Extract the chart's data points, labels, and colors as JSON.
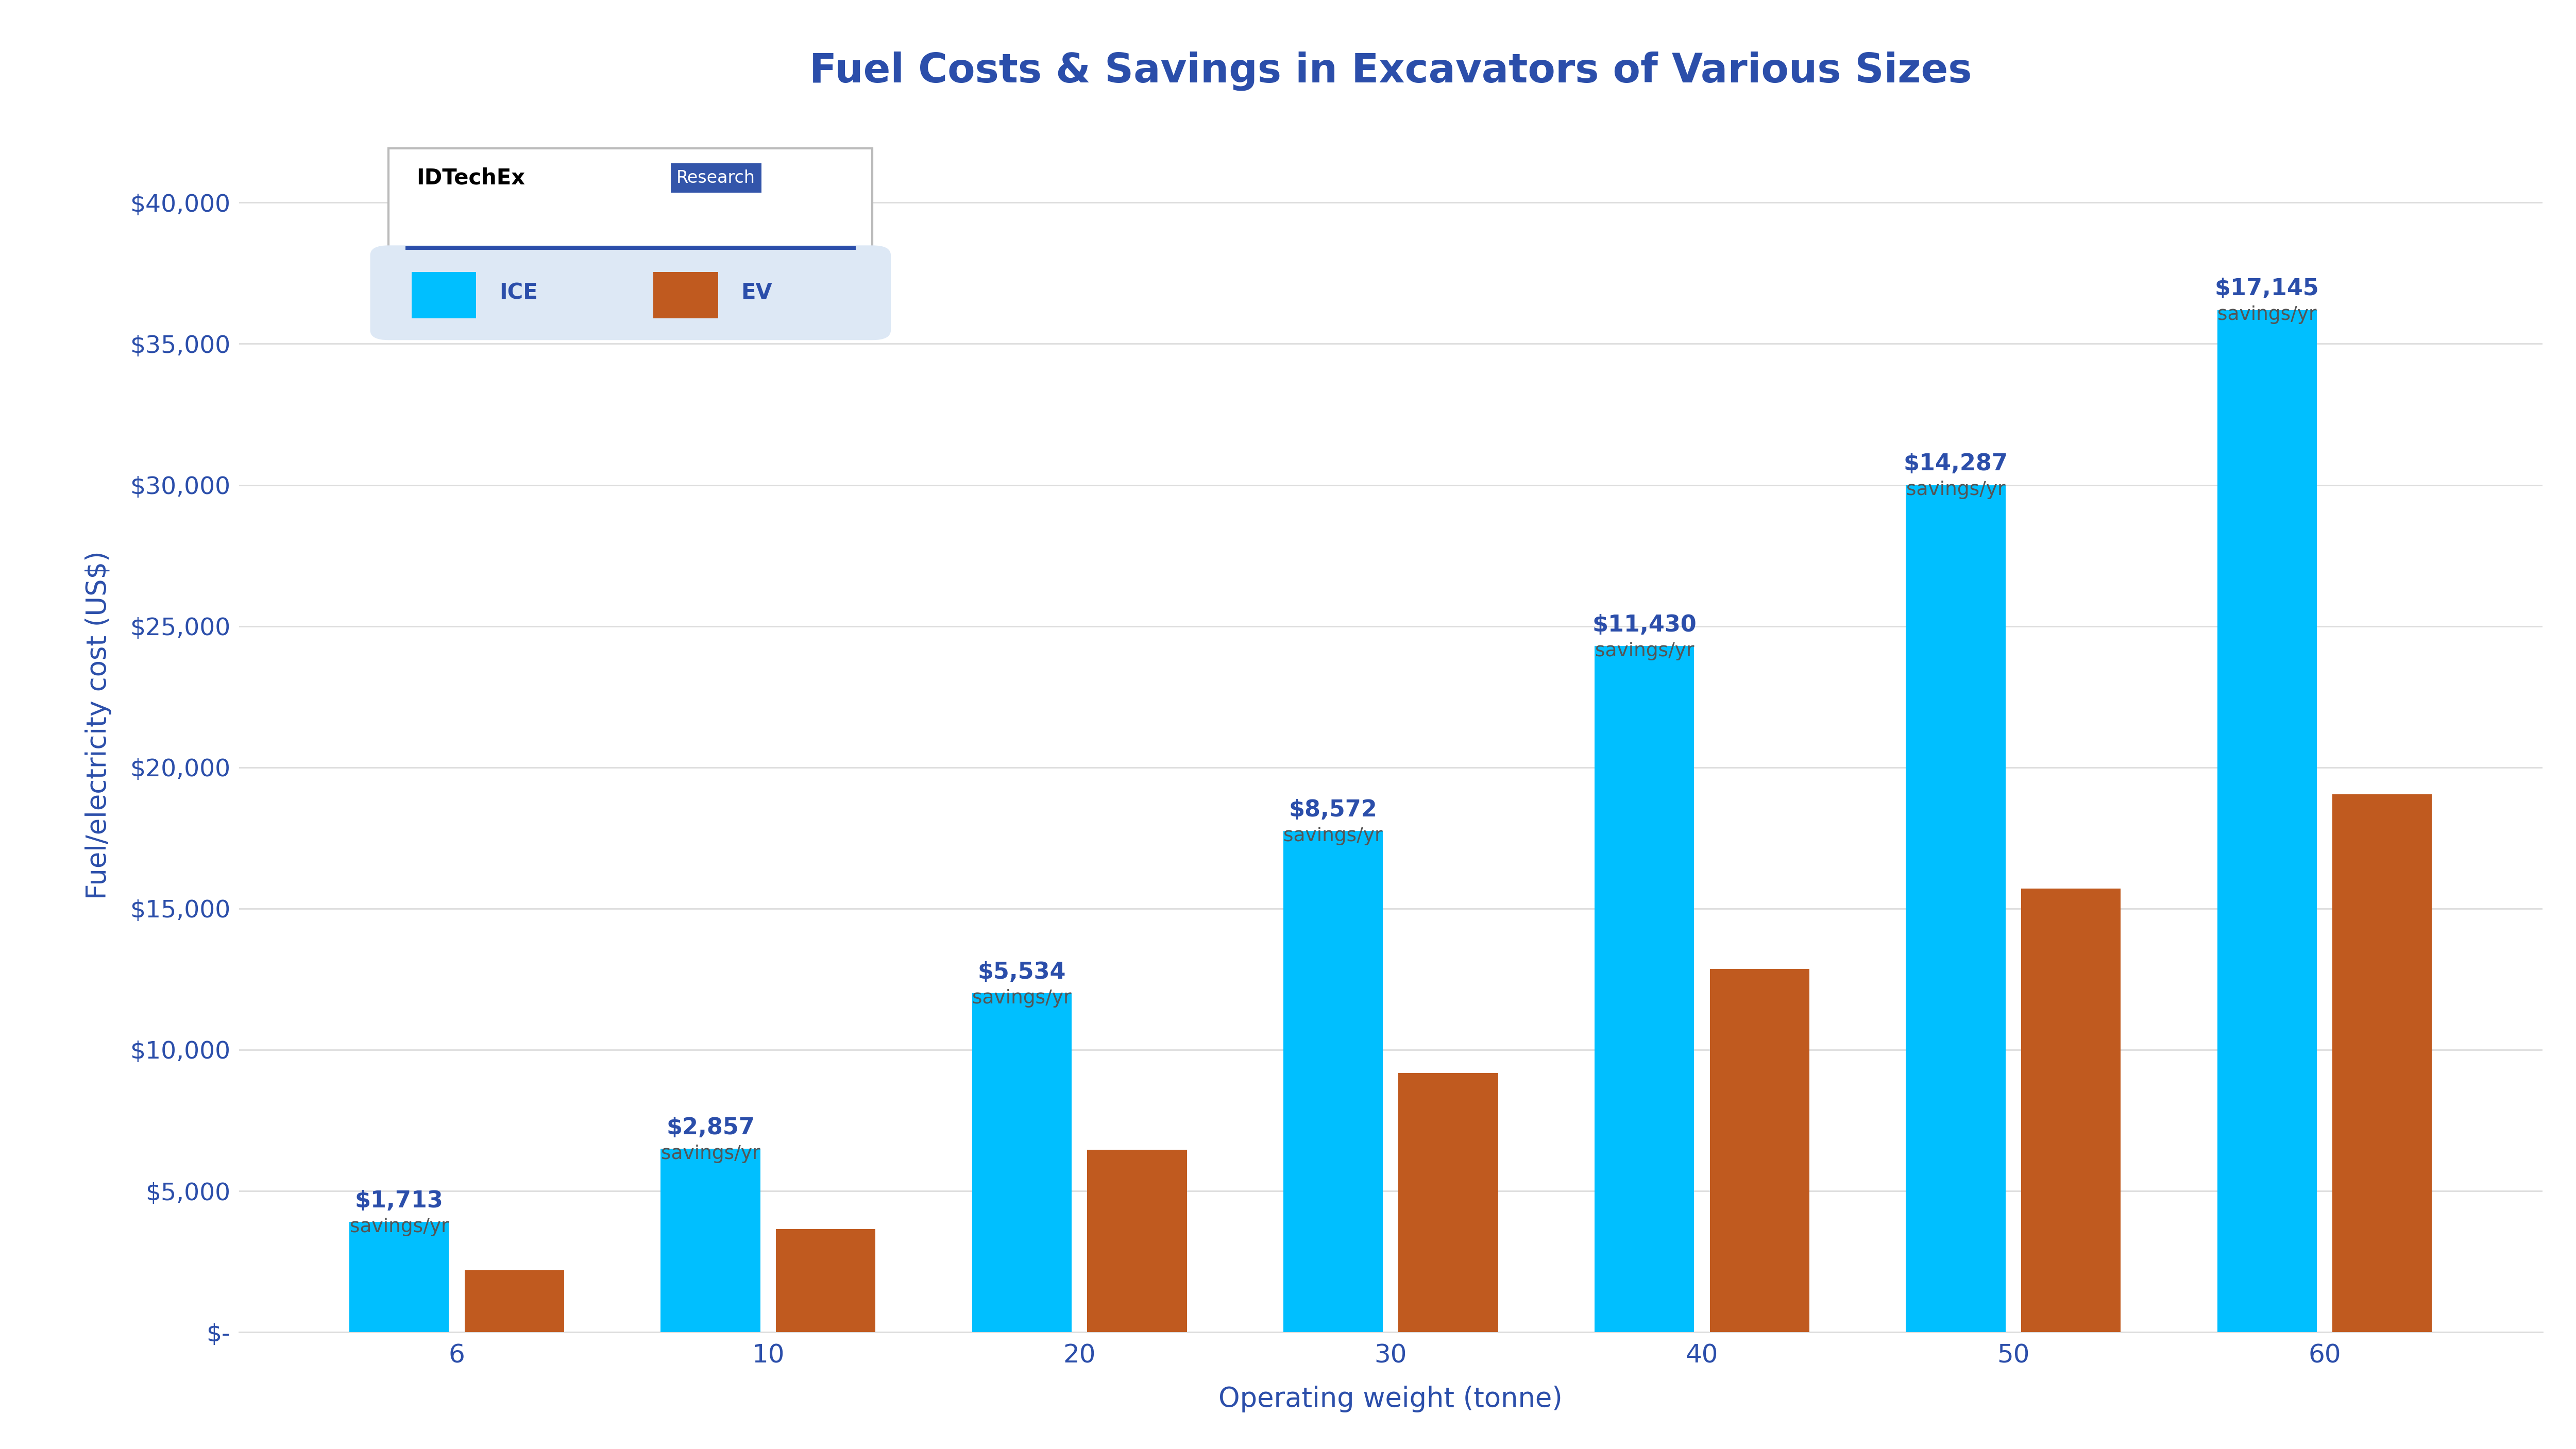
{
  "title": "Fuel Costs & Savings in Excavators of Various Sizes",
  "xlabel": "Operating weight (tonne)",
  "ylabel": "Fuel/electricity cost (US$)",
  "categories": [
    6,
    10,
    20,
    30,
    40,
    50,
    60
  ],
  "ice_values": [
    3900,
    6500,
    12000,
    17750,
    24300,
    30000,
    36200
  ],
  "ev_values": [
    2187,
    3643,
    6466,
    9178,
    12870,
    15713,
    19055
  ],
  "savings_labels": [
    "$1,713",
    "$2,857",
    "$5,534",
    "$8,572",
    "$11,430",
    "$14,287",
    "$17,145"
  ],
  "ice_color": "#00BFFF",
  "ev_color": "#C05A1F",
  "title_color": "#2B4EAA",
  "axis_label_color": "#2B4EAA",
  "tick_color": "#2B4EAA",
  "savings_dollar_color": "#2B4EAA",
  "savings_yr_color": "#555555",
  "background_color": "#FFFFFF",
  "grid_color": "#DDDDDD",
  "ylim": [
    0,
    43000
  ],
  "yticks": [
    0,
    5000,
    10000,
    15000,
    20000,
    25000,
    30000,
    35000,
    40000
  ],
  "legend_bg": "#DDE8F5",
  "idtechex_line_color": "#2B4EAA",
  "research_bg": "#3355AA",
  "bar_width": 0.32,
  "bar_gap": 0.05
}
